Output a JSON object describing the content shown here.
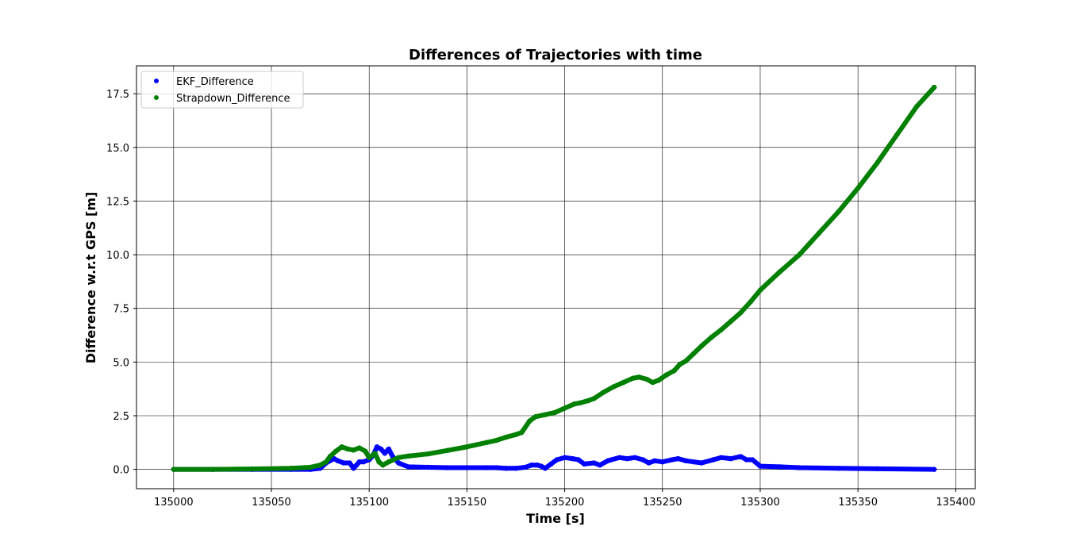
{
  "chart_data": {
    "type": "scatter",
    "title": "Differences of Trajectories with time",
    "xlabel": "Time [s]",
    "ylabel": "Difference w.r.t GPS [m]",
    "xlim": [
      134981,
      135410
    ],
    "ylim": [
      -0.9,
      18.8
    ],
    "xticks": [
      135000,
      135050,
      135100,
      135150,
      135200,
      135250,
      135300,
      135350,
      135400
    ],
    "yticks": [
      0.0,
      2.5,
      5.0,
      7.5,
      10.0,
      12.5,
      15.0,
      17.5
    ],
    "xtick_labels": [
      "135000",
      "135050",
      "135100",
      "135150",
      "135200",
      "135250",
      "135300",
      "135350",
      "135400"
    ],
    "ytick_labels": [
      "0.0",
      "2.5",
      "5.0",
      "7.5",
      "10.0",
      "12.5",
      "15.0",
      "17.5"
    ],
    "grid": true,
    "legend_position": "top-left",
    "series": [
      {
        "name": "EKF_Difference",
        "color": "#0000ff",
        "x": [
          135000,
          135020,
          135040,
          135060,
          135070,
          135075,
          135078,
          135082,
          135084,
          135087,
          135090,
          135092,
          135095,
          135097,
          135100,
          135102,
          135104,
          135106,
          135108,
          135110,
          135112,
          135115,
          135120,
          135130,
          135140,
          135150,
          135160,
          135165,
          135170,
          135175,
          135180,
          135183,
          135186,
          135188,
          135190,
          135193,
          135196,
          135200,
          135204,
          135207,
          135210,
          135215,
          135218,
          135222,
          135228,
          135232,
          135236,
          135240,
          135243,
          135246,
          135250,
          135255,
          135258,
          135262,
          135266,
          135270,
          135276,
          135280,
          135285,
          135290,
          135293,
          135296,
          135300,
          135310,
          135320,
          135340,
          135360,
          135389
        ],
        "y": [
          0.0,
          0.0,
          0.0,
          0.0,
          0.0,
          0.05,
          0.3,
          0.5,
          0.4,
          0.3,
          0.3,
          0.05,
          0.35,
          0.35,
          0.45,
          0.65,
          1.05,
          0.95,
          0.75,
          0.95,
          0.6,
          0.3,
          0.12,
          0.1,
          0.08,
          0.08,
          0.08,
          0.08,
          0.05,
          0.05,
          0.1,
          0.2,
          0.2,
          0.15,
          0.05,
          0.25,
          0.45,
          0.55,
          0.5,
          0.45,
          0.25,
          0.3,
          0.2,
          0.4,
          0.55,
          0.5,
          0.55,
          0.45,
          0.3,
          0.4,
          0.35,
          0.45,
          0.5,
          0.4,
          0.35,
          0.3,
          0.45,
          0.55,
          0.5,
          0.6,
          0.45,
          0.45,
          0.15,
          0.12,
          0.08,
          0.05,
          0.03,
          0.0
        ]
      },
      {
        "name": "Strapdown_Difference",
        "color": "#008000",
        "x": [
          135000,
          135020,
          135040,
          135060,
          135070,
          135075,
          135078,
          135080,
          135083,
          135086,
          135089,
          135092,
          135095,
          135098,
          135100,
          135103,
          135105,
          135107,
          135110,
          135115,
          135120,
          135130,
          135140,
          135150,
          135160,
          135165,
          135170,
          135175,
          135178,
          135182,
          135185,
          135190,
          135195,
          135200,
          135205,
          135208,
          135212,
          135215,
          135220,
          135225,
          135230,
          135235,
          135238,
          135242,
          135245,
          135248,
          135252,
          135256,
          135259,
          135262,
          135266,
          135270,
          135275,
          135280,
          135285,
          135290,
          135295,
          135300,
          135310,
          135320,
          135330,
          135340,
          135350,
          135360,
          135370,
          135380,
          135389
        ],
        "y": [
          0.0,
          0.0,
          0.02,
          0.05,
          0.1,
          0.2,
          0.35,
          0.6,
          0.85,
          1.05,
          0.95,
          0.9,
          1.0,
          0.85,
          0.55,
          0.75,
          0.35,
          0.2,
          0.35,
          0.55,
          0.62,
          0.72,
          0.88,
          1.05,
          1.25,
          1.35,
          1.5,
          1.62,
          1.72,
          2.25,
          2.45,
          2.55,
          2.65,
          2.85,
          3.05,
          3.1,
          3.2,
          3.3,
          3.6,
          3.85,
          4.05,
          4.25,
          4.3,
          4.2,
          4.05,
          4.15,
          4.4,
          4.6,
          4.9,
          5.05,
          5.4,
          5.75,
          6.15,
          6.5,
          6.9,
          7.3,
          7.8,
          8.35,
          9.2,
          10.0,
          11.0,
          12.0,
          13.1,
          14.3,
          15.6,
          16.9,
          17.8
        ]
      }
    ]
  }
}
